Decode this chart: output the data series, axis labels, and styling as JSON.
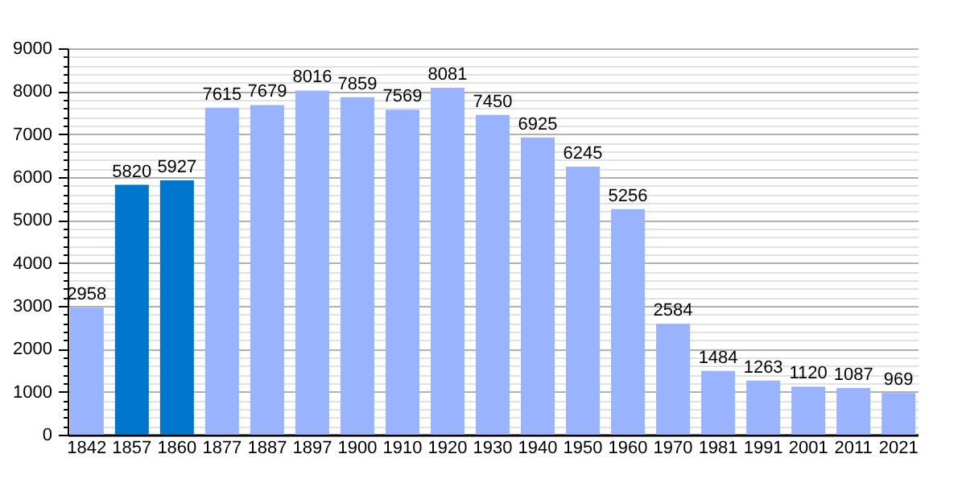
{
  "chart_data": {
    "type": "bar",
    "categories": [
      "1842",
      "1857",
      "1860",
      "1877",
      "1887",
      "1897",
      "1900",
      "1910",
      "1920",
      "1930",
      "1940",
      "1950",
      "1960",
      "1970",
      "1981",
      "1991",
      "2001",
      "2011",
      "2021"
    ],
    "values": [
      2958,
      5820,
      5927,
      7615,
      7679,
      8016,
      7859,
      7569,
      8081,
      7450,
      6925,
      6245,
      5256,
      2584,
      1484,
      1263,
      1120,
      1087,
      969
    ],
    "colors": [
      "#99b3ff",
      "#0077cc",
      "#0077cc",
      "#99b3ff",
      "#99b3ff",
      "#99b3ff",
      "#99b3ff",
      "#99b3ff",
      "#99b3ff",
      "#99b3ff",
      "#99b3ff",
      "#99b3ff",
      "#99b3ff",
      "#99b3ff",
      "#99b3ff",
      "#99b3ff",
      "#99b3ff",
      "#99b3ff",
      "#99b3ff"
    ],
    "ylim": [
      0,
      9000
    ],
    "yticks": [
      0,
      {
        "value": 200,
        "label": null
      },
      {
        "value": 400,
        "label": null
      },
      {
        "value": 600,
        "label": null
      },
      {
        "value": 800,
        "label": null
      },
      1000,
      {
        "value": 1200,
        "label": null
      },
      {
        "value": 1400,
        "label": null
      },
      {
        "value": 1600,
        "label": null
      },
      {
        "value": 1800,
        "label": null
      },
      2000,
      {
        "value": 2200,
        "label": null
      },
      {
        "value": 2400,
        "label": null
      },
      {
        "value": 2600,
        "label": null
      },
      {
        "value": 2800,
        "label": null
      },
      3000,
      {
        "value": 3200,
        "label": null
      },
      {
        "value": 3400,
        "label": null
      },
      {
        "value": 3600,
        "label": null
      },
      {
        "value": 3800,
        "label": null
      },
      4000,
      {
        "value": 4200,
        "label": null
      },
      {
        "value": 4400,
        "label": null
      },
      {
        "value": 4600,
        "label": null
      },
      {
        "value": 4800,
        "label": null
      },
      5000,
      {
        "value": 5200,
        "label": null
      },
      {
        "value": 5400,
        "label": null
      },
      {
        "value": 5600,
        "label": null
      },
      {
        "value": 5800,
        "label": null
      },
      6000,
      {
        "value": 6200,
        "label": null
      },
      {
        "value": 6400,
        "label": null
      },
      {
        "value": 6600,
        "label": null
      },
      {
        "value": 6800,
        "label": null
      },
      7000,
      {
        "value": 7200,
        "label": null
      },
      {
        "value": 7400,
        "label": null
      },
      {
        "value": 7600,
        "label": null
      },
      {
        "value": 7800,
        "label": null
      },
      8000,
      {
        "value": 8200,
        "label": null
      },
      {
        "value": 8400,
        "label": null
      },
      {
        "value": 8600,
        "label": null
      },
      {
        "value": 8800,
        "label": null
      },
      9000
    ],
    "grid": "y",
    "data_labels": true
  }
}
